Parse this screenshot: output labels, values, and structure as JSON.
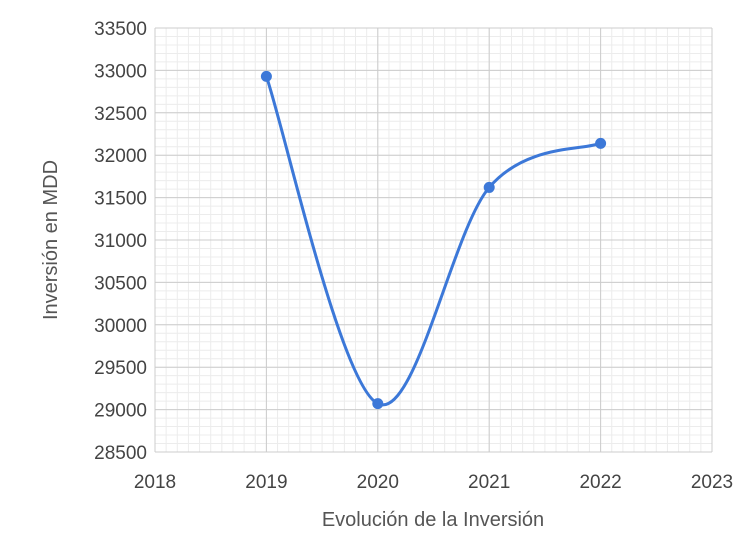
{
  "chart_data": {
    "type": "line",
    "title": "",
    "xlabel": "Evolución  de la Inversión",
    "ylabel": "Inversión  en MDD",
    "xlim": [
      2018,
      2023
    ],
    "ylim": [
      28500,
      33500
    ],
    "x_ticks": [
      2018,
      2019,
      2020,
      2021,
      2022,
      2023
    ],
    "y_ticks": [
      28500,
      29000,
      29500,
      30000,
      30500,
      31000,
      31500,
      32000,
      32500,
      33000,
      33500
    ],
    "grid": true,
    "smooth": true,
    "series": [
      {
        "color": "#3c78d8",
        "x": [
          2019,
          2020,
          2021,
          2022
        ],
        "y": [
          32930,
          29070,
          31620,
          32140
        ]
      }
    ]
  }
}
